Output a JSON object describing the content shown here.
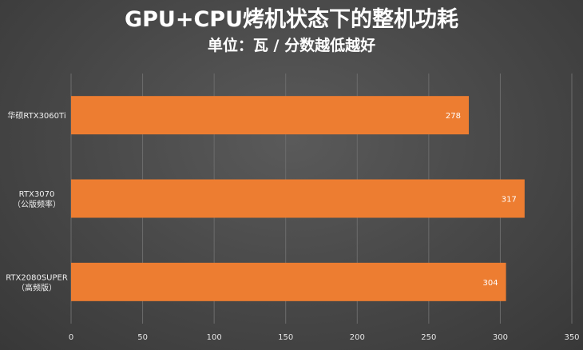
{
  "chart_data": {
    "type": "bar",
    "orientation": "horizontal",
    "title": "GPU+CPU烤机状态下的整机功耗",
    "subtitle": "单位：瓦 / 分数越低越好",
    "categories": [
      [
        "华硕RTX3060Ti"
      ],
      [
        "RTX3070",
        "（公版频率）"
      ],
      [
        "RTX2080SUPER",
        "（高频版）"
      ]
    ],
    "values": [
      278,
      317,
      304
    ],
    "data_labels": [
      "278",
      "317",
      "304"
    ],
    "xlim": [
      0,
      350
    ],
    "x_ticks": [
      0,
      50,
      100,
      150,
      200,
      250,
      300,
      350
    ],
    "x_tick_labels": [
      "0",
      "50",
      "100",
      "150",
      "200",
      "250",
      "300",
      "350"
    ],
    "grid": "vertical",
    "legend": "none",
    "bar_color": "#ed7d31"
  }
}
